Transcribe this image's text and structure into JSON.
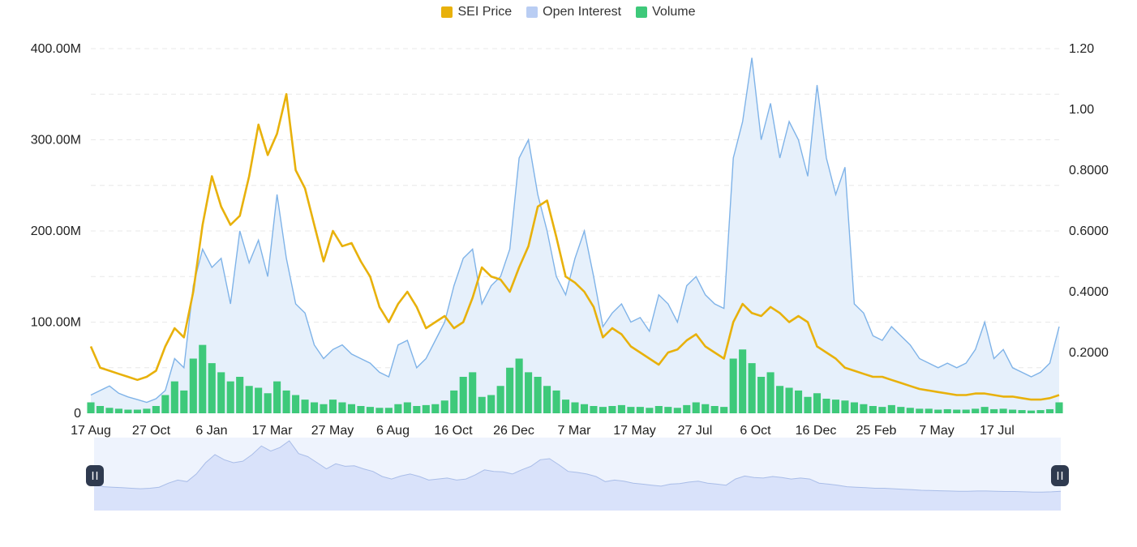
{
  "legend": {
    "price_label": "SEI Price",
    "oi_label": "Open Interest",
    "volume_label": "Volume"
  },
  "colors": {
    "price": "#e8b10b",
    "oi_line": "#7fb3e8",
    "oi_fill": "#e6f0fb",
    "oi_legend": "#b9cdf3",
    "volume": "#3ec97a",
    "grid": "#e8e8e8",
    "navigator_bg": "#eef3fd",
    "navigator_area": "#d9e2fa",
    "navigator_line": "#a9bde8"
  },
  "chart_data": {
    "type": "line",
    "x_ticks": [
      "17 Aug",
      "27 Oct",
      "6 Jan",
      "17 Mar",
      "27 May",
      "6 Aug",
      "16 Oct",
      "26 Dec",
      "7 Mar",
      "17 May",
      "27 Jul",
      "6 Oct",
      "16 Dec",
      "25 Feb",
      "7 May",
      "17 Jul"
    ],
    "left_axis": {
      "ticks": [
        "0",
        "100.00M",
        "200.00M",
        "300.00M",
        "400.00M"
      ],
      "range": [
        0,
        400000000
      ]
    },
    "right_axis": {
      "ticks": [
        "0.2000",
        "0.4000",
        "0.6000",
        "0.8000",
        "1.00",
        "1.20"
      ],
      "range": [
        0,
        1.2
      ]
    },
    "grid": true,
    "legend_position": "top",
    "series": [
      {
        "name": "SEI Price",
        "axis": "right",
        "type": "line",
        "values": [
          0.22,
          0.15,
          0.14,
          0.13,
          0.12,
          0.11,
          0.12,
          0.14,
          0.22,
          0.28,
          0.25,
          0.4,
          0.62,
          0.78,
          0.68,
          0.62,
          0.65,
          0.78,
          0.95,
          0.85,
          0.92,
          1.05,
          0.8,
          0.74,
          0.62,
          0.5,
          0.6,
          0.55,
          0.56,
          0.5,
          0.45,
          0.35,
          0.3,
          0.36,
          0.4,
          0.35,
          0.28,
          0.3,
          0.32,
          0.28,
          0.3,
          0.38,
          0.48,
          0.45,
          0.44,
          0.4,
          0.48,
          0.55,
          0.68,
          0.7,
          0.58,
          0.45,
          0.43,
          0.4,
          0.35,
          0.25,
          0.28,
          0.26,
          0.22,
          0.2,
          0.18,
          0.16,
          0.2,
          0.21,
          0.24,
          0.26,
          0.22,
          0.2,
          0.18,
          0.3,
          0.36,
          0.33,
          0.32,
          0.35,
          0.33,
          0.3,
          0.32,
          0.3,
          0.22,
          0.2,
          0.18,
          0.15,
          0.14,
          0.13,
          0.12,
          0.12,
          0.11,
          0.1,
          0.09,
          0.08,
          0.075,
          0.07,
          0.065,
          0.06,
          0.06,
          0.065,
          0.065,
          0.06,
          0.055,
          0.055,
          0.05,
          0.045,
          0.045,
          0.05,
          0.06
        ]
      },
      {
        "name": "Open Interest",
        "axis": "left",
        "type": "area",
        "values": [
          20000000,
          25000000,
          30000000,
          22000000,
          18000000,
          15000000,
          12000000,
          16000000,
          25000000,
          60000000,
          50000000,
          140000000,
          180000000,
          160000000,
          170000000,
          120000000,
          200000000,
          165000000,
          190000000,
          150000000,
          240000000,
          170000000,
          120000000,
          110000000,
          75000000,
          60000000,
          70000000,
          75000000,
          65000000,
          60000000,
          55000000,
          45000000,
          40000000,
          75000000,
          80000000,
          50000000,
          60000000,
          80000000,
          100000000,
          140000000,
          170000000,
          180000000,
          120000000,
          140000000,
          150000000,
          180000000,
          280000000,
          300000000,
          240000000,
          200000000,
          150000000,
          130000000,
          170000000,
          200000000,
          150000000,
          95000000,
          110000000,
          120000000,
          100000000,
          105000000,
          90000000,
          130000000,
          120000000,
          100000000,
          140000000,
          150000000,
          130000000,
          120000000,
          115000000,
          280000000,
          320000000,
          390000000,
          300000000,
          340000000,
          280000000,
          320000000,
          300000000,
          260000000,
          360000000,
          280000000,
          240000000,
          270000000,
          120000000,
          110000000,
          85000000,
          80000000,
          95000000,
          85000000,
          75000000,
          60000000,
          55000000,
          50000000,
          55000000,
          50000000,
          55000000,
          70000000,
          100000000,
          60000000,
          70000000,
          50000000,
          45000000,
          40000000,
          45000000,
          55000000,
          95000000
        ]
      },
      {
        "name": "Volume",
        "axis": "left",
        "type": "bar",
        "values": [
          12000000,
          8000000,
          6000000,
          5000000,
          4000000,
          4000000,
          5000000,
          8000000,
          20000000,
          35000000,
          25000000,
          60000000,
          75000000,
          55000000,
          45000000,
          35000000,
          40000000,
          30000000,
          28000000,
          22000000,
          35000000,
          25000000,
          20000000,
          15000000,
          12000000,
          10000000,
          15000000,
          12000000,
          10000000,
          8000000,
          7000000,
          6000000,
          6000000,
          10000000,
          12000000,
          8000000,
          9000000,
          10000000,
          14000000,
          25000000,
          40000000,
          45000000,
          18000000,
          20000000,
          30000000,
          50000000,
          60000000,
          45000000,
          40000000,
          30000000,
          25000000,
          15000000,
          12000000,
          10000000,
          8000000,
          7000000,
          8000000,
          9000000,
          7000000,
          7000000,
          6000000,
          8000000,
          7000000,
          6000000,
          9000000,
          12000000,
          10000000,
          8000000,
          7000000,
          60000000,
          70000000,
          55000000,
          40000000,
          45000000,
          30000000,
          28000000,
          25000000,
          18000000,
          22000000,
          16000000,
          15000000,
          14000000,
          12000000,
          10000000,
          8000000,
          7000000,
          9000000,
          7000000,
          6000000,
          5000000,
          5000000,
          4000000,
          4500000,
          4000000,
          4000000,
          5000000,
          7000000,
          4500000,
          5000000,
          4000000,
          3500000,
          3000000,
          3500000,
          4500000,
          12000000
        ]
      }
    ]
  }
}
